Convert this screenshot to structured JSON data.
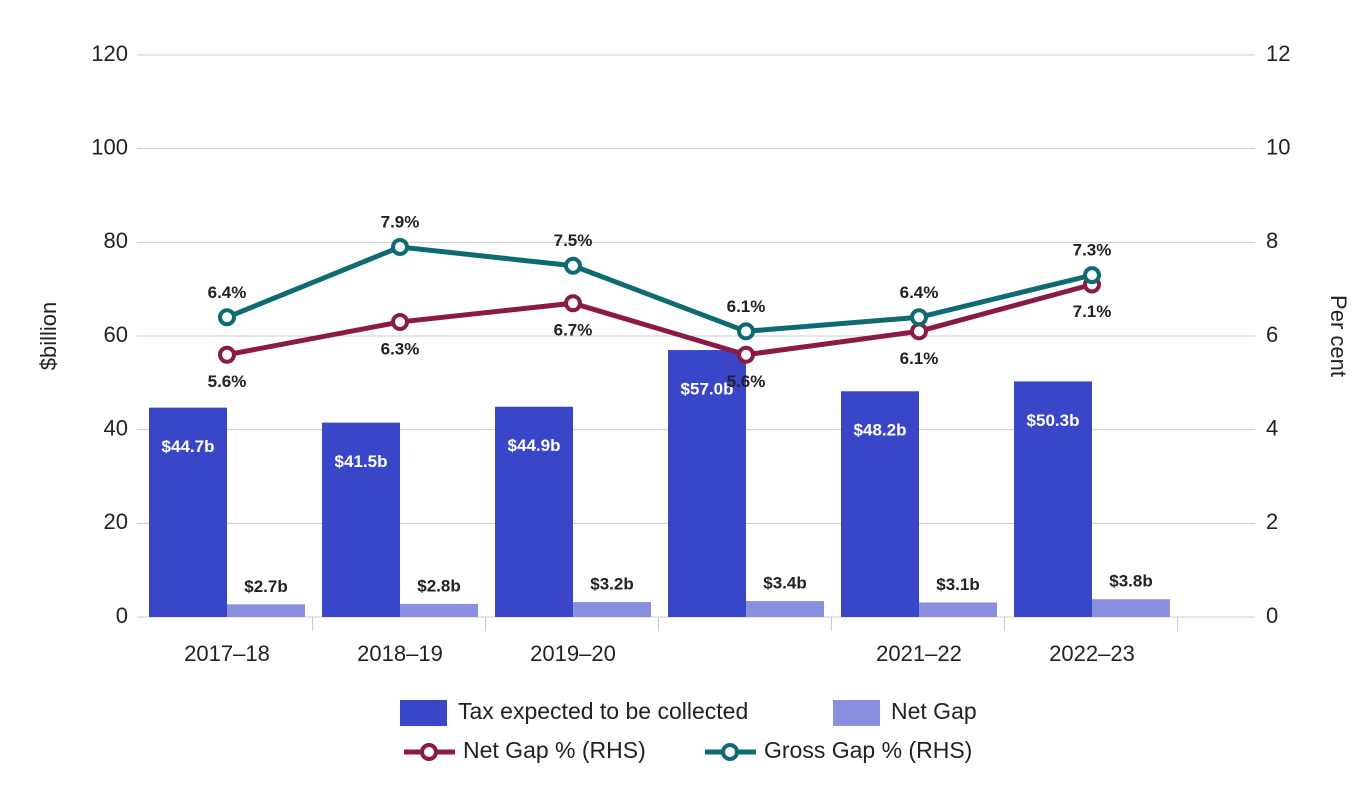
{
  "chart_data": {
    "type": "bar",
    "y_label": "$billion",
    "y2_label": "Per cent",
    "categories": [
      "2017–18",
      "2018–19",
      "2019–20",
      null,
      "2021–22",
      "2022–23"
    ],
    "ylim": [
      0,
      120
    ],
    "yticks": [
      0,
      20,
      40,
      60,
      80,
      100,
      120
    ],
    "y2lim": [
      0,
      12
    ],
    "y2ticks": [
      0,
      2,
      4,
      6,
      8,
      10,
      12
    ],
    "grid": true,
    "series": [
      {
        "name": "Tax expected to be collected",
        "color": "#3a46c8",
        "values": [
          44.7,
          41.5,
          44.9,
          57.0,
          48.2,
          50.3
        ],
        "value_labels": [
          "$44.7b",
          "$41.5b",
          "$44.9b",
          "$57.0b",
          "$48.2b",
          "$50.3b"
        ]
      },
      {
        "name": "Net Gap",
        "color": "#8a8fe0",
        "values": [
          2.7,
          2.8,
          3.2,
          3.4,
          3.1,
          3.8
        ],
        "value_labels": [
          "$2.7b",
          "$2.8b",
          "$3.2b",
          "$3.4b",
          "$3.1b",
          "$3.8b"
        ]
      },
      {
        "name": "Net Gap % (RHS)",
        "type": "line",
        "axis": "y2",
        "color": "#8b1a45",
        "values": [
          5.6,
          6.3,
          6.7,
          5.6,
          6.1,
          7.1
        ],
        "value_labels": [
          "5.6%",
          "6.3%",
          "6.7%",
          "5.6%",
          "6.1%",
          "7.1%"
        ]
      },
      {
        "name": "Gross Gap % (RHS)",
        "type": "line",
        "axis": "y2",
        "color": "#0f6b72",
        "values": [
          6.4,
          7.9,
          7.5,
          6.1,
          6.4,
          7.3
        ],
        "value_labels": [
          "6.4%",
          "7.9%",
          "7.5%",
          "6.1%",
          "6.4%",
          "7.3%"
        ]
      }
    ]
  }
}
